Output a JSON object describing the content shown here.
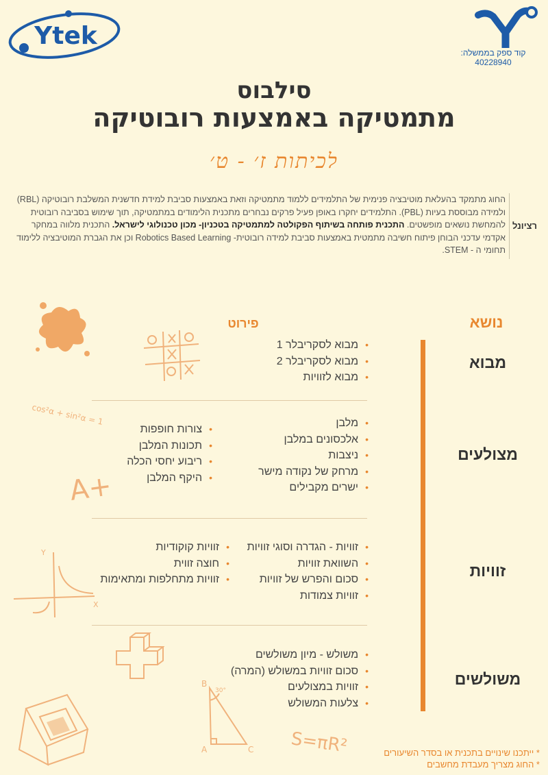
{
  "logos": {
    "ytek_text": "Ytek",
    "supplier_label": "קוד ספק בממשלה:",
    "supplier_code": "40228940"
  },
  "title": {
    "line1": "סילבוס",
    "line2": "מתמטיקה באמצעות רובוטיקה",
    "grades": "לכיתות ז׳ - ט׳"
  },
  "rationale": {
    "label": "רציונל",
    "text_part1": "החוג מתמקד בהעלאת מוטיבציה פנימית של התלמידים ללמוד מתמטיקה וזאת באמצעות סביבת למידת חדשנית המשלבת רובוטיקה (RBL) ולמידה מבוססת בעיות (PBL). התלמידים יחקרו באופן פעיל פרקים נבחרים מתכנית הלימודים במתמטיקה, תוך שימוש בסביבה רובוטית להמחשת נושאים מופשטים. ",
    "text_bold": "התכנית פותחה בשיתוף הפקולטה למתמטיקה בטכניון- מכון טכנולוגי לישראל.",
    "text_part2": " התכנית מלווה במחקר אקדמי עדכני הבוחן פיתוח חשיבה מתמטית באמצעות סביבת למידה רובוטית- Robotics Based Learning וכן את הגברת המוטיבציה ללימוד תחומי ה - STEM."
  },
  "headers": {
    "topic": "נושא",
    "detail": "פירוט"
  },
  "sections": [
    {
      "topic": "מבוא",
      "col1": [
        "מבוא לסקריבלר 1",
        "מבוא לסקריבלר 2",
        "מבוא לזוויות"
      ],
      "col2": []
    },
    {
      "topic": "מצולעים",
      "col1": [
        "מלבן",
        "אלכסונים במלבן",
        "ניצבות",
        "מרחק של נקודה מישר",
        "ישרים מקבילים"
      ],
      "col2": [
        "צורות חופפות",
        "תכונות המלבן",
        "ריבוע יחסי הכלה",
        "היקף המלבן"
      ]
    },
    {
      "topic": "זוויות",
      "col1": [
        "זוויות - הגדרה וסוגי זוויות",
        "השוואת זוויות",
        "סכום והפרש של זוויות",
        "זוויות צמודות"
      ],
      "col2": [
        "זוויות קוקודיות",
        "חוצה זווית",
        "זוויות מתחלפות ומתאימות"
      ]
    },
    {
      "topic": "משולשים",
      "col1": [
        "משולש - מיון משולשים",
        "סכום זוויות במשולש (המרה)",
        "זוויות במצולעים",
        "צלעות המשולש"
      ],
      "col2": []
    }
  ],
  "notes": [
    "* ייתכנו שינויים בתכנית או בסדר השיעורים",
    "* החוג מצריך מעבדת מחשבים"
  ],
  "decorations": {
    "formula_trig": "cos²α + sin²α = 1",
    "formula_area": "S=πR²",
    "grade_mark": "A+",
    "axis_y": "Y",
    "axis_x": "X",
    "vertex_b": "B",
    "vertex_a": "A",
    "vertex_c": "C",
    "angle_label": "30°"
  },
  "colors": {
    "background": "#fdf7dd",
    "accent": "#e8872f",
    "logo_blue": "#1d5ba8",
    "doodle": "#f0b27c"
  }
}
